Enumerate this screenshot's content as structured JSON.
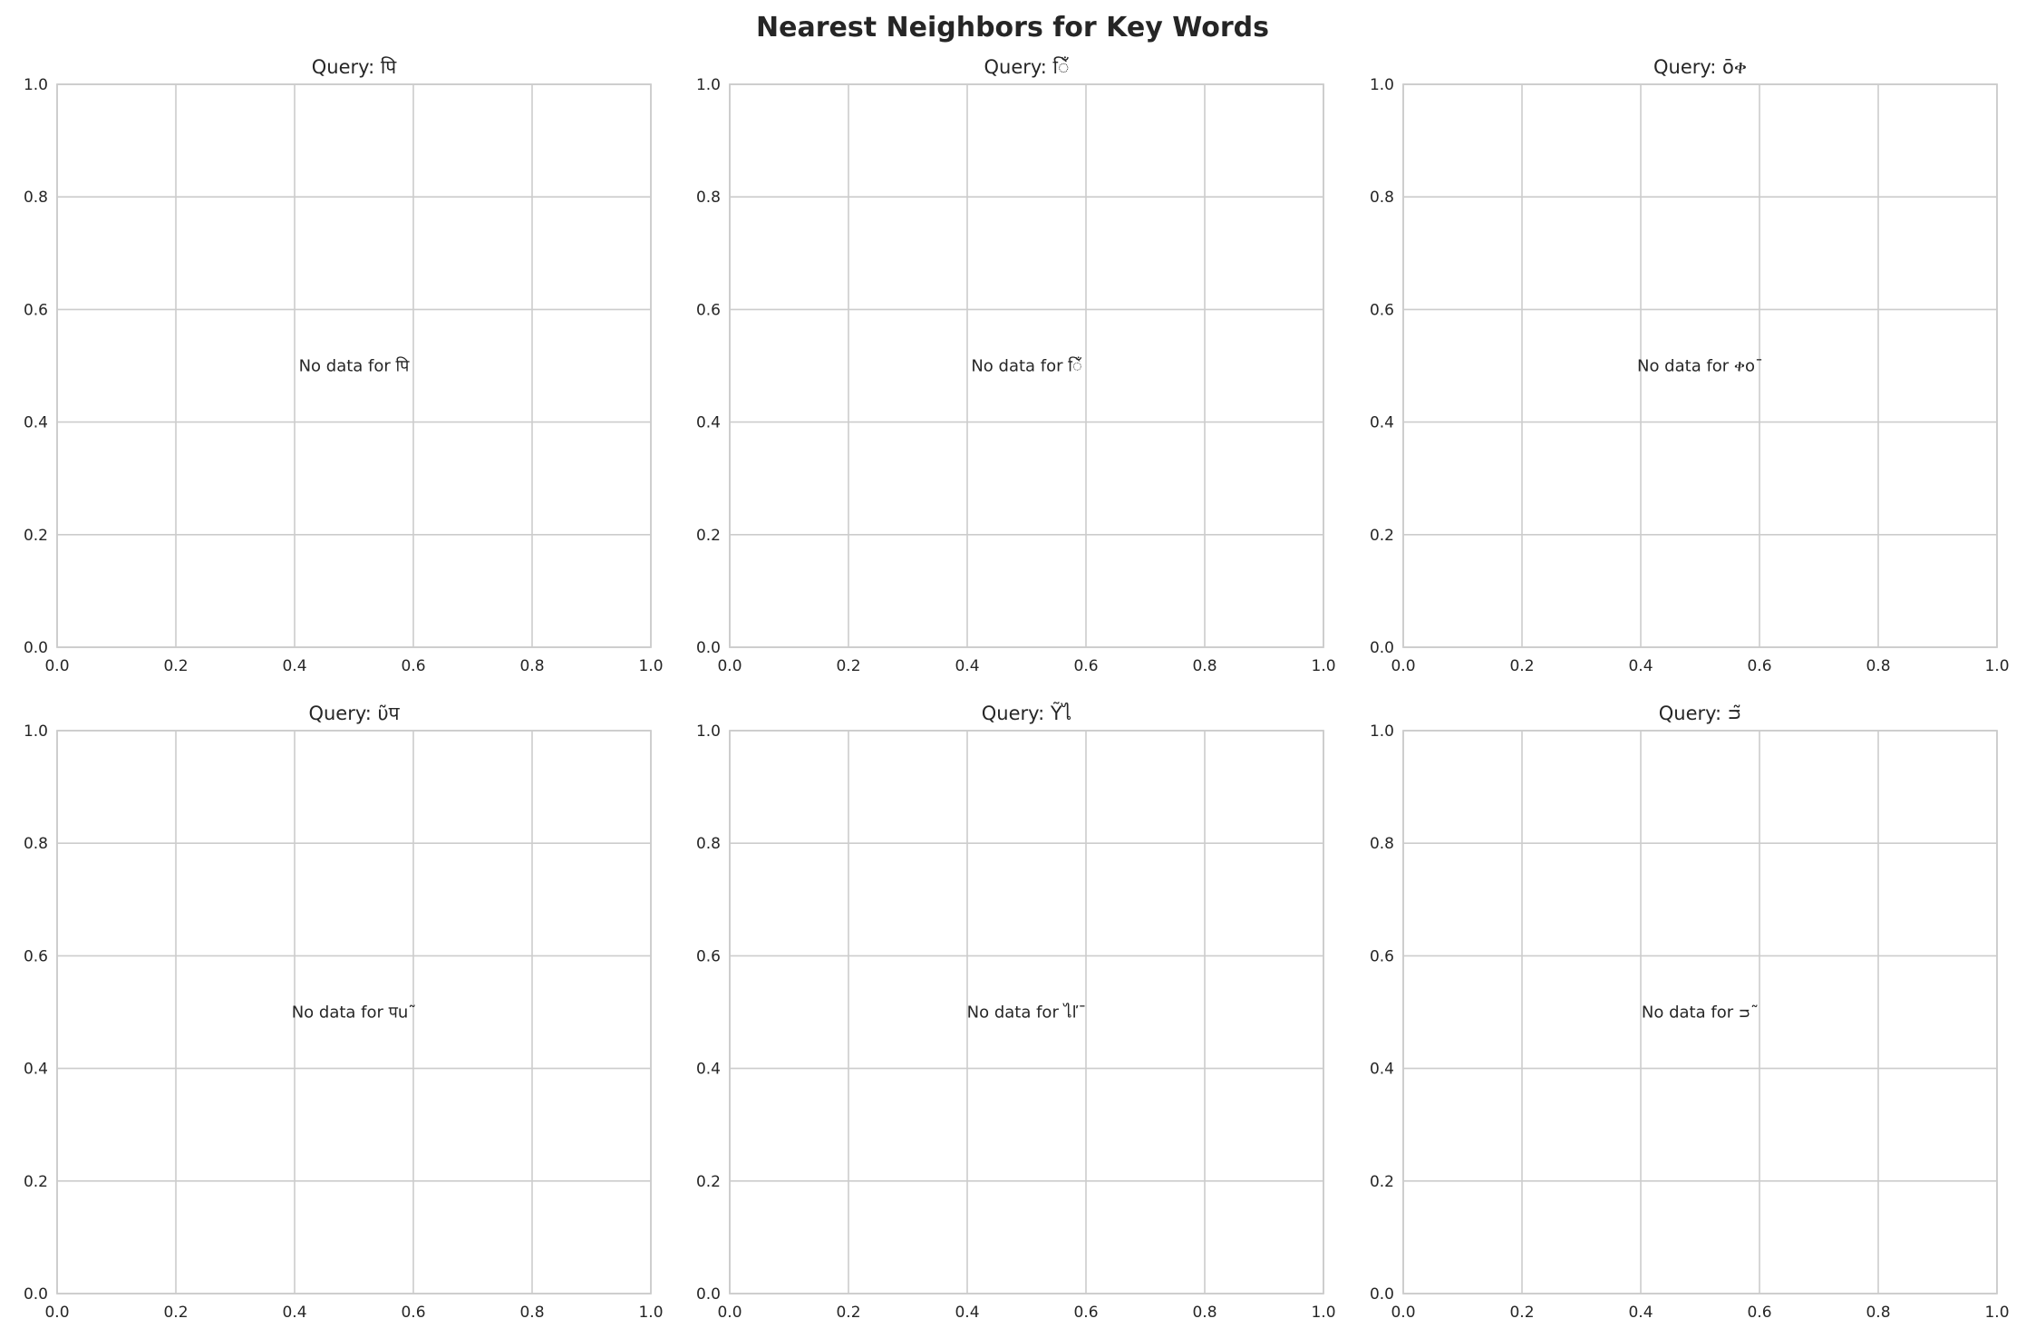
{
  "title": "Nearest Neighbors for Key Words",
  "chart_data": [
    {
      "type": "scatter",
      "title": "Query: पि",
      "message": "No data for पि",
      "xlim": [
        0,
        1
      ],
      "ylim": [
        0,
        1
      ],
      "xticks": [
        "0.0",
        "0.2",
        "0.4",
        "0.6",
        "0.8",
        "1.0"
      ],
      "yticks": [
        "0.0",
        "0.2",
        "0.4",
        "0.6",
        "0.8",
        "1.0"
      ],
      "grid": true,
      "points": []
    },
    {
      "type": "scatter",
      "title": "Query: िँ",
      "message": "No data for िँ",
      "xlim": [
        0,
        1
      ],
      "ylim": [
        0,
        1
      ],
      "xticks": [
        "0.0",
        "0.2",
        "0.4",
        "0.6",
        "0.8",
        "1.0"
      ],
      "yticks": [
        "0.0",
        "0.2",
        "0.4",
        "0.6",
        "0.8",
        "1.0"
      ],
      "grid": true,
      "points": []
    },
    {
      "type": "scatter",
      "title": "Query: ōቀ",
      "message": "No data for ቀo¯",
      "xlim": [
        0,
        1
      ],
      "ylim": [
        0,
        1
      ],
      "xticks": [
        "0.0",
        "0.2",
        "0.4",
        "0.6",
        "0.8",
        "1.0"
      ],
      "yticks": [
        "0.0",
        "0.2",
        "0.4",
        "0.6",
        "0.8",
        "1.0"
      ],
      "grid": true,
      "points": []
    },
    {
      "type": "scatter",
      "title": "Query: ῦप",
      "message": "No data for पu˜",
      "xlim": [
        0,
        1
      ],
      "ylim": [
        0,
        1
      ],
      "xticks": [
        "0.0",
        "0.2",
        "0.4",
        "0.6",
        "0.8",
        "1.0"
      ],
      "yticks": [
        "0.0",
        "0.2",
        "0.4",
        "0.6",
        "0.8",
        "1.0"
      ],
      "grid": true,
      "points": []
    },
    {
      "type": "scatter",
      "title": "Query: Ỹไ",
      "message": "No data for ไľ¯",
      "xlim": [
        0,
        1
      ],
      "ylim": [
        0,
        1
      ],
      "xticks": [
        "0.0",
        "0.2",
        "0.4",
        "0.6",
        "0.8",
        "1.0"
      ],
      "yticks": [
        "0.0",
        "0.2",
        "0.4",
        "0.6",
        "0.8",
        "1.0"
      ],
      "grid": true,
      "points": []
    },
    {
      "type": "scatter",
      "title": "Query: ᴝ̃",
      "message": "No data for ᴝ˜",
      "xlim": [
        0,
        1
      ],
      "ylim": [
        0,
        1
      ],
      "xticks": [
        "0.0",
        "0.2",
        "0.4",
        "0.6",
        "0.8",
        "1.0"
      ],
      "yticks": [
        "0.0",
        "0.2",
        "0.4",
        "0.6",
        "0.8",
        "1.0"
      ],
      "grid": true,
      "points": []
    }
  ]
}
